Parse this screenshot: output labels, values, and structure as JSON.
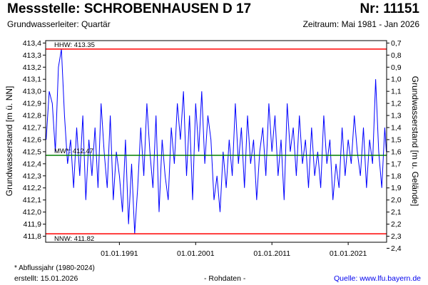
{
  "header": {
    "title": "Messstelle: SCHROBENHAUSEN D 17",
    "nr": "Nr: 11151",
    "aquifer": "Grundwasserleiter: Quartär",
    "period": "Zeitraum: Mai 1981 - Jan 2026"
  },
  "footer": {
    "footnote": "* Abflussjahr (1980-2024)",
    "created": "erstellt:  15.01.2026",
    "rawdata": "- Rohdaten -",
    "source": "Quelle: www.lfu.bayern.de"
  },
  "colors": {
    "series": "#0000ff",
    "extreme_lines": "#ff0000",
    "mean_line": "#008000",
    "frame": "#000000"
  },
  "chart_data": {
    "type": "line",
    "ylabel": "Grundwasserstand [m ü. NN]",
    "ylabel_right": "Grundwasserstand [m u. Gelände]",
    "ylim": [
      411.75,
      413.42
    ],
    "yticks": [
      "413,4",
      "413,3",
      "413,2",
      "413,1",
      "413,0",
      "412,9",
      "412,8",
      "412,7",
      "412,6",
      "412,5",
      "412,4",
      "412,3",
      "412,2",
      "412,1",
      "412,0",
      "411,9",
      "411,8"
    ],
    "ytick_values": [
      413.4,
      413.3,
      413.2,
      413.1,
      413.0,
      412.9,
      412.8,
      412.7,
      412.6,
      412.5,
      412.4,
      412.3,
      412.2,
      412.1,
      412.0,
      411.9,
      411.8
    ],
    "right_axis_offset": 414.1,
    "yticks_right": [
      "0,7",
      "0,8",
      "0,9",
      "1,0",
      "1,1",
      "1,2",
      "1,3",
      "1,4",
      "1,5",
      "1,6",
      "1,7",
      "1,8",
      "1,9",
      "2,0",
      "2,1",
      "2,2",
      "2,3",
      "2,4"
    ],
    "yticks_right_values": [
      0.7,
      0.8,
      0.9,
      1.0,
      1.1,
      1.2,
      1.3,
      1.4,
      1.5,
      1.6,
      1.7,
      1.8,
      1.9,
      2.0,
      2.1,
      2.2,
      2.3,
      2.4
    ],
    "xlim": [
      1981.33,
      2026.04
    ],
    "xticks": [
      "01.01.1991",
      "01.01.2001",
      "01.01.2011",
      "01.01.2021"
    ],
    "xtick_values": [
      1991.0,
      2001.0,
      2011.0,
      2021.0
    ],
    "grid": false,
    "reference_lines": [
      {
        "label": "HHW: 413.35",
        "value": 413.35,
        "kind": "max"
      },
      {
        "label": "MW*: 412.47",
        "value": 412.47,
        "kind": "mean"
      },
      {
        "label": "NNW: 411.82",
        "value": 411.82,
        "kind": "min"
      }
    ],
    "series": [
      {
        "x": [
          1981.4,
          1981.8,
          1982.2,
          1982.6,
          1983.0,
          1983.4,
          1983.8,
          1984.2,
          1984.6,
          1985.0,
          1985.4,
          1985.8,
          1986.2,
          1986.6,
          1987.0,
          1987.4,
          1987.8,
          1988.2,
          1988.6,
          1989.0,
          1989.4,
          1989.8,
          1990.2,
          1990.6,
          1991.0,
          1991.4,
          1991.8,
          1992.2,
          1992.6,
          1993.0,
          1993.4,
          1993.8,
          1994.2,
          1994.6,
          1995.0,
          1995.4,
          1995.8,
          1996.2,
          1996.6,
          1997.0,
          1997.4,
          1997.8,
          1998.2,
          1998.6,
          1999.0,
          1999.4,
          1999.8,
          2000.2,
          2000.6,
          2001.0,
          2001.4,
          2001.8,
          2002.2,
          2002.6,
          2003.0,
          2003.4,
          2003.8,
          2004.2,
          2004.6,
          2005.0,
          2005.4,
          2005.8,
          2006.2,
          2006.6,
          2007.0,
          2007.4,
          2007.8,
          2008.2,
          2008.6,
          2009.0,
          2009.4,
          2009.8,
          2010.2,
          2010.6,
          2011.0,
          2011.4,
          2011.8,
          2012.2,
          2012.6,
          2013.0,
          2013.4,
          2013.8,
          2014.2,
          2014.6,
          2015.0,
          2015.4,
          2015.8,
          2016.2,
          2016.6,
          2017.0,
          2017.4,
          2017.8,
          2018.2,
          2018.6,
          2019.0,
          2019.4,
          2019.8,
          2020.2,
          2020.6,
          2021.0,
          2021.4,
          2021.8,
          2022.2,
          2022.6,
          2023.0,
          2023.4,
          2023.8,
          2024.2,
          2024.6,
          2025.0,
          2025.4,
          2025.8,
          2026.0
        ],
        "values": [
          412.6,
          413.0,
          412.9,
          412.5,
          413.2,
          413.35,
          412.8,
          412.4,
          412.6,
          412.2,
          412.7,
          412.3,
          412.8,
          412.1,
          412.6,
          412.3,
          412.7,
          412.2,
          412.9,
          412.5,
          412.2,
          412.8,
          412.1,
          412.5,
          412.3,
          412.0,
          412.6,
          411.9,
          412.4,
          411.82,
          412.2,
          412.7,
          412.3,
          412.9,
          412.5,
          412.2,
          412.8,
          412.0,
          412.6,
          412.3,
          412.1,
          412.7,
          412.4,
          412.9,
          412.6,
          413.0,
          412.3,
          412.8,
          412.1,
          412.9,
          412.5,
          413.0,
          412.4,
          412.8,
          412.6,
          412.1,
          412.3,
          412.0,
          412.5,
          412.2,
          412.6,
          412.3,
          412.9,
          412.4,
          412.7,
          412.2,
          412.8,
          412.4,
          412.6,
          412.1,
          412.5,
          412.7,
          412.3,
          412.9,
          412.5,
          412.8,
          412.3,
          412.6,
          412.1,
          412.9,
          412.5,
          412.7,
          412.3,
          412.8,
          412.4,
          412.6,
          412.2,
          412.7,
          412.3,
          412.5,
          412.2,
          412.8,
          412.4,
          412.6,
          412.1,
          412.4,
          412.2,
          412.7,
          412.3,
          412.6,
          412.4,
          412.8,
          412.5,
          412.3,
          412.7,
          412.2,
          412.6,
          412.4,
          413.1,
          412.5,
          412.2,
          412.7,
          412.5
        ]
      }
    ]
  }
}
